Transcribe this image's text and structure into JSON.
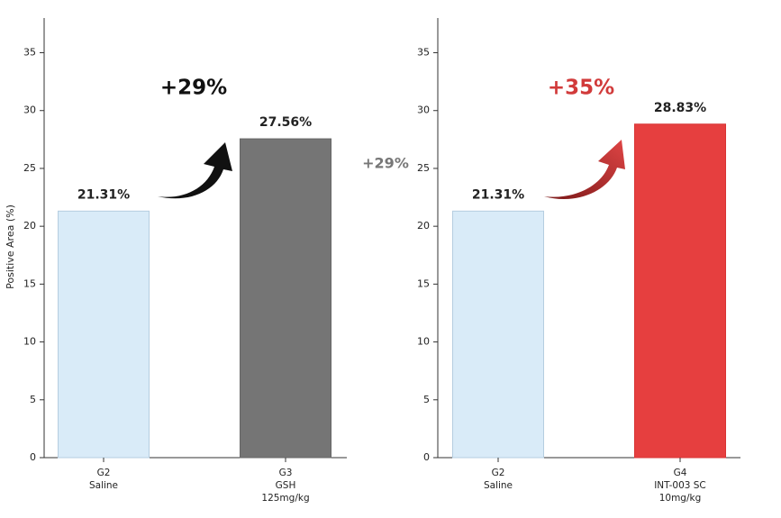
{
  "chart_data": [
    {
      "type": "bar",
      "y_label": "Positive Area (%)",
      "categories": [
        [
          "G2",
          "Saline"
        ],
        [
          "G3",
          "GSH",
          "125mg/kg"
        ]
      ],
      "values": [
        21.31,
        27.56
      ],
      "value_labels": [
        "21.31%",
        "27.56%"
      ],
      "colors": [
        "#d9ebf8",
        "#757575"
      ],
      "edge_colors": [
        "#b5cde0",
        "#666666"
      ],
      "ylim": [
        0,
        38
      ],
      "yticks": [
        0,
        5,
        10,
        15,
        20,
        25,
        30,
        35
      ],
      "annotation": "+29%",
      "annotation_color": "#111111"
    },
    {
      "type": "bar",
      "categories": [
        [
          "G2",
          "Saline"
        ],
        [
          "G4",
          "INT-003 SC",
          "10mg/kg"
        ]
      ],
      "values": [
        21.31,
        28.83
      ],
      "value_labels": [
        "21.31%",
        "28.83%"
      ],
      "colors": [
        "#d9ebf8",
        "#e63f3f"
      ],
      "edge_colors": [
        "#b5cde0",
        "#d83434"
      ],
      "ylim": [
        0,
        38
      ],
      "yticks": [
        0,
        5,
        10,
        15,
        20,
        25,
        30,
        35
      ],
      "annotation": "+35%",
      "annotation_color": "#d13a3a"
    }
  ],
  "side_note": "+29%"
}
